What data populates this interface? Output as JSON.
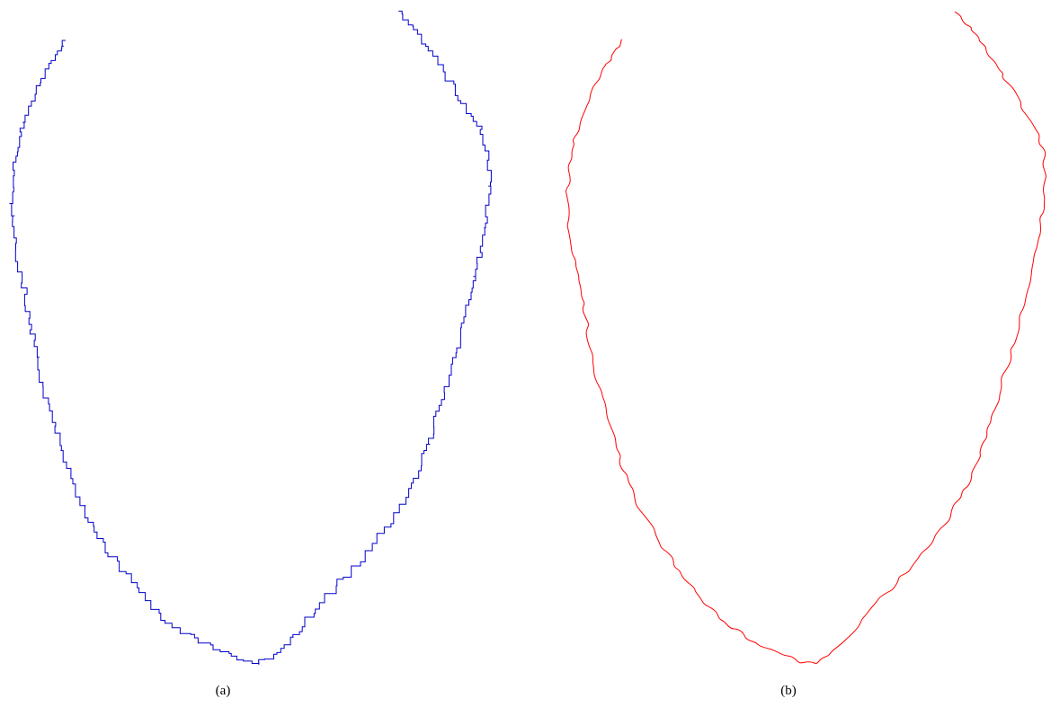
{
  "figure": {
    "panels": [
      {
        "id": "a",
        "caption": "(a)",
        "stroke_color": "#0000cc",
        "style": "jagged-stepped"
      },
      {
        "id": "b",
        "caption": "(b)",
        "stroke_color": "#ff0000",
        "style": "smooth-wavy"
      }
    ]
  }
}
